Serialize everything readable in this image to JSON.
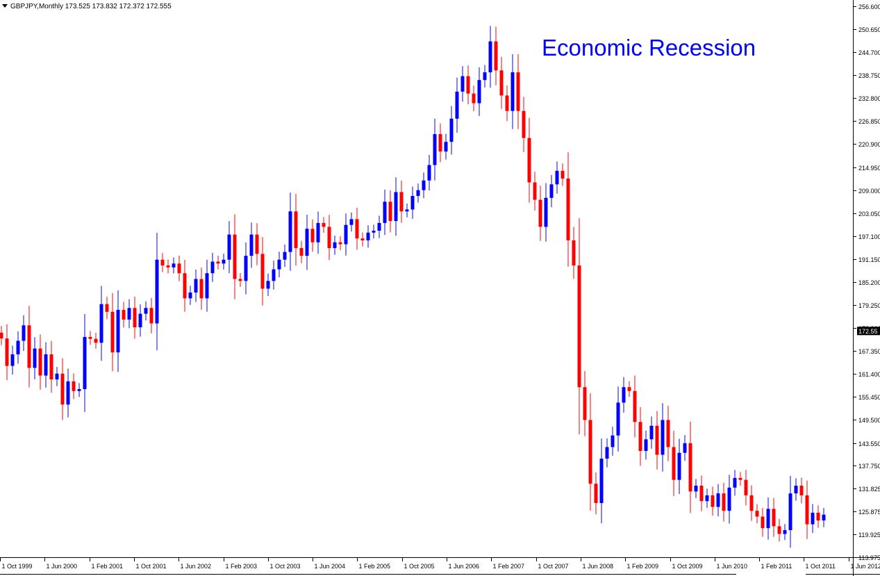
{
  "header": {
    "symbol": "GBPJPY,Monthly",
    "ohlc": "173.525 173.832 172.372 172.555"
  },
  "annotation": "Economic Recession",
  "colors": {
    "bull": "#0000ff",
    "bear": "#ff0000",
    "axis": "#000000",
    "price_tag_bg": "#000000",
    "price_tag_text": "#ffffff"
  },
  "current_price": "172.55",
  "chart_data": {
    "type": "candlestick",
    "ylim": [
      113.975,
      256.6
    ],
    "y_ticks": [
      "256.600",
      "250.650",
      "244.700",
      "238.750",
      "232.800",
      "226.850",
      "220.900",
      "214.950",
      "209.000",
      "203.050",
      "197.100",
      "191.150",
      "185.200",
      "179.250",
      "173.300",
      "167.350",
      "161.400",
      "155.450",
      "149.500",
      "143.550",
      "137.750",
      "131.825",
      "125.875",
      "119.925",
      "113.975"
    ],
    "x_ticks": [
      "1 Oct 1999",
      "1 Jun 2000",
      "1 Feb 2001",
      "1 Oct 2001",
      "1 Jun 2002",
      "1 Feb 2003",
      "1 Oct 2003",
      "1 Jun 2004",
      "1 Feb 2005",
      "1 Oct 2005",
      "1 Jun 2006",
      "1 Feb 2007",
      "1 Oct 2007",
      "1 Jun 2008",
      "1 Feb 2009",
      "1 Oct 2009",
      "1 Jun 2010",
      "1 Feb 2011",
      "1 Oct 2011",
      "1 Jun 2012"
    ],
    "closes": [
      170.6,
      163.5,
      166.5,
      170.0,
      174.0,
      163.0,
      168.0,
      161.0,
      166.5,
      160.0,
      161.5,
      153.5,
      159.5,
      157.0,
      157.5,
      171.0,
      170.5,
      169.5,
      179.5,
      177.5,
      167.0,
      178.0,
      175.5,
      178.5,
      173.5,
      177.0,
      178.5,
      174.5,
      191.0,
      189.5,
      189.0,
      190.0,
      187.5,
      181.0,
      182.5,
      186.0,
      181.0,
      187.5,
      190.5,
      190.0,
      191.0,
      197.5,
      186.0,
      185.5,
      192.0,
      197.5,
      192.5,
      183.5,
      185.5,
      188.5,
      191.0,
      193.0,
      203.5,
      194.0,
      192.0,
      199.0,
      195.5,
      200.5,
      199.5,
      194.0,
      195.5,
      195.0,
      200.0,
      201.5,
      196.5,
      196.0,
      198.0,
      198.5,
      200.5,
      206.0,
      201.0,
      208.5,
      203.5,
      204.0,
      207.5,
      209.0,
      211.5,
      215.5,
      223.5,
      219.0,
      221.5,
      227.5,
      234.5,
      238.5,
      234.0,
      231.5,
      237.5,
      239.5,
      247.5,
      240.0,
      233.5,
      229.5,
      239.5,
      229.5,
      222.5,
      211.0,
      206.5,
      199.5,
      207.0,
      210.5,
      214.0,
      212.0,
      196.0,
      189.5,
      158.0,
      149.5,
      133.0,
      128.0,
      139.5,
      142.5,
      145.5,
      154.0,
      158.0,
      157.0,
      149.0,
      141.5,
      144.5,
      148.0,
      140.5,
      149.5,
      142.5,
      134.0,
      141.0,
      143.5,
      131.0,
      132.5,
      128.5,
      130.0,
      127.0,
      130.5,
      126.0,
      132.0,
      134.5,
      134.0,
      130.0,
      126.0,
      124.5,
      121.5,
      126.5,
      122.0,
      120.0,
      121.0,
      130.5,
      132.5,
      130.0,
      122.5,
      125.5,
      123.5,
      125.0
    ]
  }
}
